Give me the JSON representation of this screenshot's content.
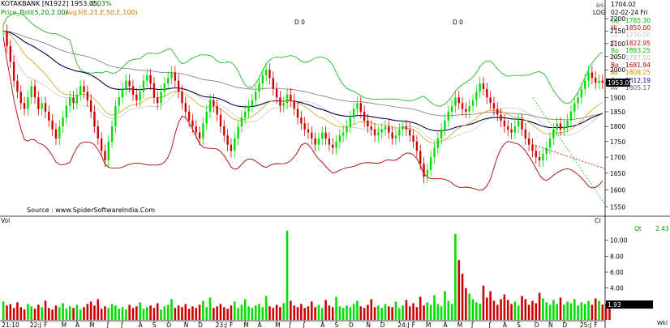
{
  "header": {
    "ticker": "KOTAKBANK [N1922]",
    "last": "1953.05,",
    "change": "0.03%",
    "indicator1": "Price_Boll(5,20,2.00)",
    "indicator2": "Avg3(E,21,E,50,E,100)",
    "scale_mode": "LOG",
    "top_price": "1704.02",
    "date": "02-02-24 Fri",
    "dates_label": "BIS",
    "event_marks": [
      "D 0",
      "D 0"
    ]
  },
  "side_panel": [
    {
      "label": "Op",
      "value": "1785.30",
      "color": "#00c000"
    },
    {
      "label": "Hi",
      "value": "1850.00",
      "color": "#e00000"
    },
    {
      "label": "Lo",
      "value": "1776.00",
      "color": "#c8c8c8"
    },
    {
      "label": "Cl",
      "value": "1822.95",
      "color": "#e00000"
    },
    {
      "label": "Bo",
      "value": "1893.25",
      "color": "#00c000"
    },
    {
      "label": "Bo",
      "value": "1787.50",
      "color": "#c8c8c8"
    },
    {
      "label": "Bo",
      "value": "1681.94",
      "color": "#b00000"
    },
    {
      "label": "Av",
      "value": "1808.25",
      "color": "#d09000"
    },
    {
      "label": "Av",
      "value": "1812.19",
      "color": "#000080"
    },
    {
      "label": "Av",
      "value": "1805.17",
      "color": "#606060"
    }
  ],
  "source": "Source : www.SpiderSoftwareIndia.Com",
  "volume_panel": {
    "title": "Vol",
    "unit": "Cr",
    "qt_label": "Qt",
    "qt_value": "2.43",
    "last_value": "1.93",
    "axis_label": "Wkl"
  },
  "colors": {
    "up": "#00dd00",
    "down": "#cc0000",
    "boll_upper": "#22bb22",
    "boll_mid": "#c0c0c0",
    "boll_lower": "#aa0000",
    "ema21": "#d4a020",
    "ema50": "#000050",
    "ema100": "#777777",
    "price_box": "#000000"
  },
  "chart_data": {
    "type": "candlestick",
    "price_axis": {
      "scale": "log",
      "range": [
        1530,
        2230
      ],
      "ticks": [
        "2200",
        "2150",
        "2100",
        "2050",
        "2000",
        "1950",
        "1900",
        "1850",
        "1800",
        "1750",
        "1700",
        "1650",
        "1600",
        "1550"
      ],
      "tick_values": [
        2200,
        2150,
        2100,
        2050,
        2000,
        1950,
        1900,
        1850,
        1800,
        1750,
        1700,
        1650,
        1600,
        1550
      ],
      "current_price_label": "1953.05"
    },
    "volume_axis": {
      "range": [
        0,
        12
      ],
      "ticks": [
        "10.00",
        "8.00",
        "6.00",
        "4.00"
      ],
      "tick_values": [
        10,
        8,
        6,
        4
      ]
    },
    "x_tick_labels": [
      "21:10",
      "22:J",
      "F",
      "M",
      "A",
      "M",
      "J",
      "J",
      "A",
      "S",
      "O",
      "N",
      "D",
      "23:J",
      "F",
      "M",
      "A",
      "M",
      "J",
      "J",
      "A",
      "S",
      "O",
      "N",
      "D",
      "24:J",
      "F",
      "M",
      "A",
      "M",
      "J",
      "J",
      "A",
      "S",
      "O",
      "N",
      "D",
      "25:J",
      "F"
    ],
    "x_tick_index": [
      0,
      8,
      12,
      17,
      21,
      25,
      30,
      34,
      39,
      43,
      47,
      52,
      56,
      61,
      65,
      69,
      73,
      78,
      82,
      86,
      91,
      95,
      99,
      104,
      108,
      113,
      117,
      121,
      126,
      130,
      134,
      139,
      143,
      147,
      152,
      156,
      160,
      165,
      169
    ],
    "x_count": 172,
    "closes": [
      2150,
      2090,
      2030,
      1960,
      1920,
      1880,
      1860,
      1900,
      1940,
      1900,
      1860,
      1880,
      1850,
      1820,
      1790,
      1760,
      1800,
      1830,
      1870,
      1900,
      1880,
      1910,
      1940,
      1920,
      1890,
      1850,
      1800,
      1760,
      1720,
      1690,
      1750,
      1800,
      1870,
      1900,
      1930,
      1960,
      1940,
      1910,
      1890,
      1920,
      1960,
      1980,
      1950,
      1900,
      1880,
      1920,
      1950,
      1970,
      1990,
      1960,
      1920,
      1880,
      1850,
      1820,
      1800,
      1780,
      1760,
      1810,
      1850,
      1890,
      1870,
      1840,
      1800,
      1770,
      1740,
      1720,
      1760,
      1800,
      1830,
      1850,
      1870,
      1890,
      1920,
      1950,
      1980,
      2000,
      1970,
      1930,
      1900,
      1870,
      1880,
      1910,
      1890,
      1860,
      1830,
      1810,
      1790,
      1780,
      1760,
      1740,
      1760,
      1780,
      1760,
      1740,
      1730,
      1750,
      1770,
      1780,
      1800,
      1830,
      1860,
      1880,
      1850,
      1820,
      1800,
      1790,
      1770,
      1780,
      1790,
      1800,
      1780,
      1760,
      1770,
      1790,
      1800,
      1790,
      1770,
      1750,
      1720,
      1680,
      1640,
      1660,
      1700,
      1730,
      1760,
      1790,
      1820,
      1850,
      1870,
      1900,
      1880,
      1860,
      1850,
      1870,
      1890,
      1920,
      1950,
      1930,
      1900,
      1880,
      1860,
      1840,
      1820,
      1800,
      1790,
      1780,
      1800,
      1820,
      1790,
      1760,
      1740,
      1720,
      1700,
      1690,
      1710,
      1730,
      1760,
      1790,
      1810,
      1790,
      1800,
      1820,
      1850,
      1880,
      1900,
      1930,
      1960,
      1990,
      1970,
      1953,
      1960,
      1953
    ],
    "volumes": [
      2.3,
      1.8,
      2.0,
      1.5,
      2.2,
      1.6,
      1.3,
      2.0,
      1.7,
      1.4,
      1.9,
      1.6,
      2.4,
      1.5,
      1.3,
      1.8,
      1.6,
      2.1,
      1.4,
      1.7,
      1.5,
      1.9,
      1.3,
      1.6,
      2.0,
      2.3,
      1.8,
      2.6,
      1.4,
      1.7,
      1.5,
      2.0,
      1.8,
      1.4,
      1.6,
      1.3,
      1.9,
      1.5,
      1.7,
      2.2,
      1.4,
      1.6,
      1.8,
      1.5,
      2.1,
      1.3,
      1.7,
      1.9,
      2.6,
      1.5,
      1.8,
      1.6,
      2.0,
      1.4,
      1.7,
      1.5,
      1.9,
      2.4,
      1.6,
      2.8,
      1.5,
      1.7,
      2.0,
      1.6,
      1.4,
      1.8,
      2.3,
      1.5,
      1.9,
      2.6,
      1.7,
      1.5,
      1.8,
      2.0,
      1.6,
      3.0,
      1.7,
      1.5,
      1.9,
      1.6,
      2.1,
      11.2,
      2.4,
      1.8,
      1.6,
      2.0,
      1.5,
      1.7,
      2.3,
      1.6,
      1.9,
      1.5,
      2.5,
      1.8,
      1.6,
      2.9,
      1.7,
      1.5,
      1.8,
      1.6,
      2.0,
      2.4,
      1.7,
      1.5,
      1.9,
      2.6,
      1.6,
      1.8,
      1.5,
      2.0,
      1.7,
      1.6,
      2.3,
      1.5,
      1.8,
      2.5,
      1.7,
      2.1,
      1.6,
      2.9,
      1.8,
      2.2,
      1.9,
      3.1,
      2.0,
      1.7,
      3.6,
      2.4,
      2.0,
      10.8,
      7.5,
      5.8,
      4.0,
      3.3,
      2.6,
      2.2,
      2.0,
      4.3,
      2.8,
      3.6,
      2.4,
      1.9,
      2.6,
      3.2,
      2.5,
      2.0,
      2.3,
      1.8,
      3.0,
      2.6,
      1.9,
      2.4,
      2.1,
      3.4,
      2.7,
      2.2,
      1.9,
      2.5,
      2.0,
      2.8,
      1.9,
      2.3,
      2.1,
      2.6,
      1.8,
      2.2,
      2.0,
      2.4,
      1.9,
      2.7,
      2.4,
      1.93,
      2.1,
      1.93
    ]
  }
}
